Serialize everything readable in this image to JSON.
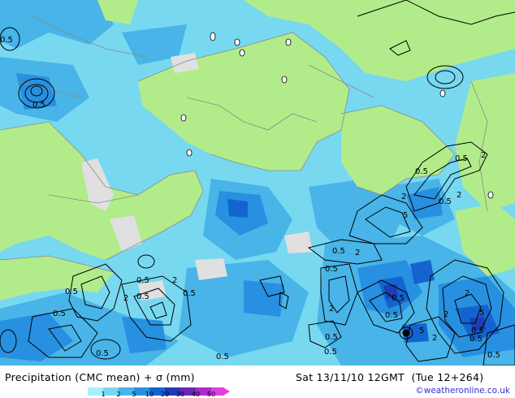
{
  "title": "Precipitation (CMC mean) + σ (mm)",
  "valid_time": "Sat 13/11/10 12GMT",
  "lead_time": "(Tue 12+264)",
  "credit": "©weatheronline.co.uk",
  "legend": {
    "ticks": [
      "1",
      "2",
      "5",
      "10",
      "20",
      "30",
      "40",
      "50"
    ],
    "colors": [
      "#a8f0f8",
      "#78d8f0",
      "#48b4e8",
      "#2890e0",
      "#1464d0",
      "#1e3cb4",
      "#6a28b4",
      "#a82cc8",
      "#e040e0"
    ]
  },
  "contour_labels": [
    "0.5",
    "0.5",
    "0.5",
    "2",
    "0.5",
    "0.5",
    "2",
    "0.5",
    "2",
    "0.5",
    "2",
    "0.5",
    "2",
    "5",
    "0.5",
    "0.5",
    "2",
    "0.5",
    "0.5",
    "2",
    "0.5",
    "0.5",
    "2",
    "0.5",
    "0.5",
    "2",
    "5",
    "0.5",
    "5",
    "2",
    "0.5",
    "0.5",
    "0.5",
    "0.5"
  ],
  "colors": {
    "land": "#b2ec8a",
    "dry": "#e0e0e0",
    "credit_text": "#2a33cc"
  }
}
